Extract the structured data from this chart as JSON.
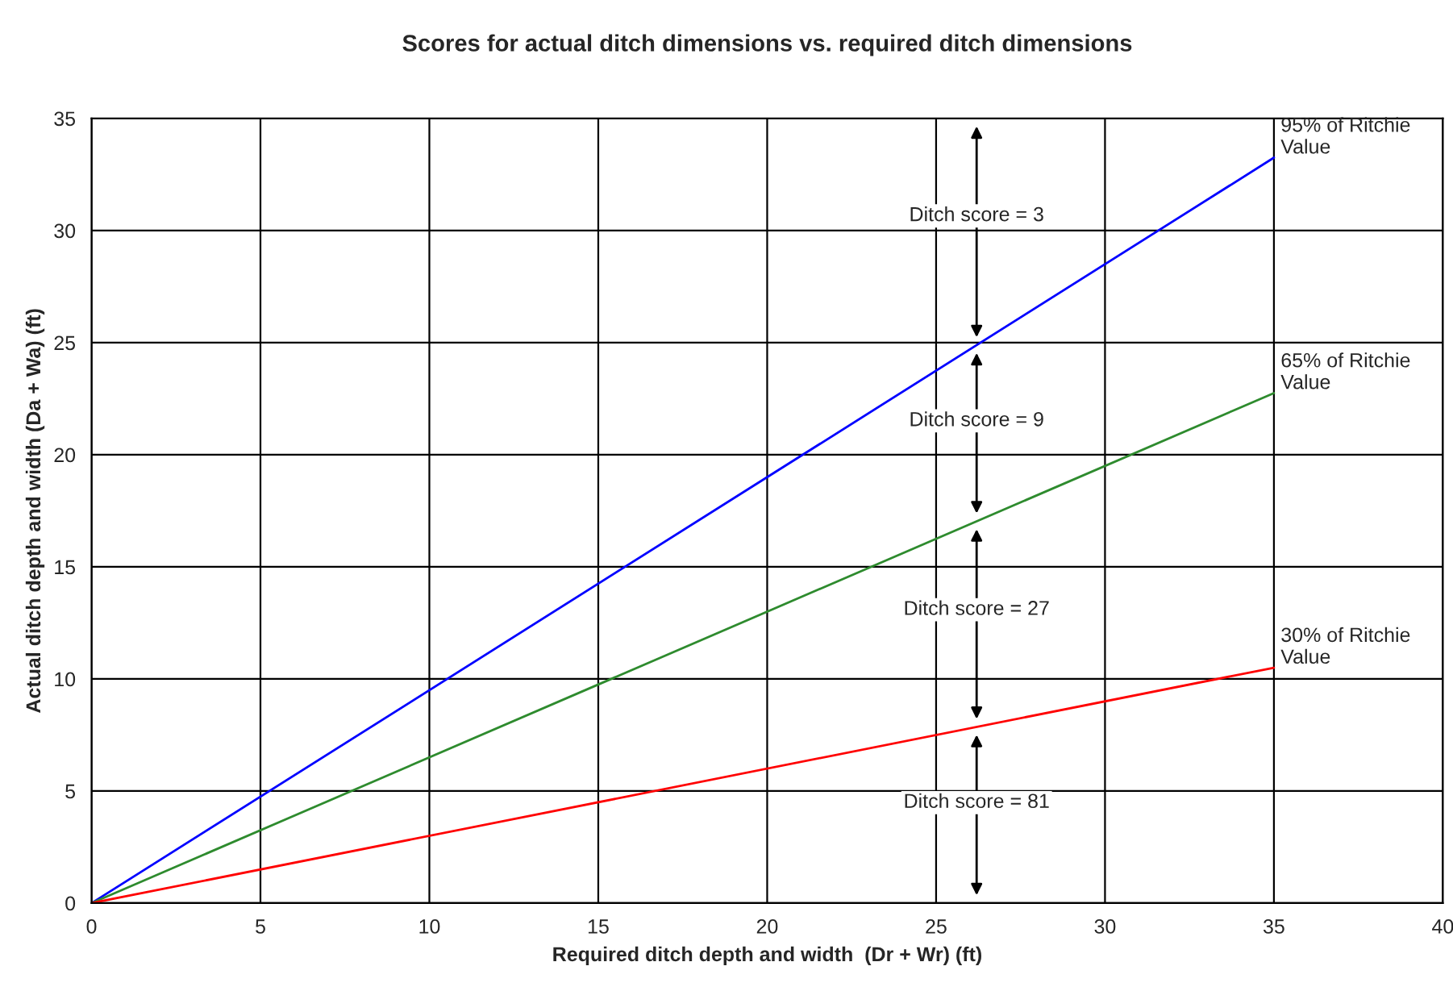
{
  "chart_data": {
    "type": "line",
    "title": "Scores for actual ditch dimensions vs. required ditch dimensions",
    "xlabel": "Required ditch depth and width  (Dr + Wr) (ft)",
    "ylabel": "Actual ditch depth and width (Da + Wa) (ft)",
    "series": [
      {
        "name": "95% of Ritchie Value",
        "color": "#0000ff",
        "values": [
          0,
          33.25
        ]
      },
      {
        "name": "65% of Ritchie Value",
        "color": "#2e8b2e",
        "values": [
          0,
          22.75
        ]
      },
      {
        "name": "30% of Ritchie Value",
        "color": "#ff0000",
        "values": [
          0,
          10.5
        ]
      }
    ],
    "x": [
      0,
      35
    ],
    "annotations": [
      "Ditch score = 3",
      "Ditch score = 9",
      "Ditch score = 27",
      "Ditch score = 81"
    ],
    "xlim": [
      0,
      40
    ],
    "ylim": [
      0,
      35
    ],
    "xticks": [
      0,
      5,
      10,
      15,
      20,
      25,
      30,
      35,
      40
    ],
    "yticks": [
      0,
      5,
      10,
      15,
      20,
      25,
      30,
      35
    ],
    "grid": true,
    "line_style": "solid",
    "marker": "none"
  }
}
